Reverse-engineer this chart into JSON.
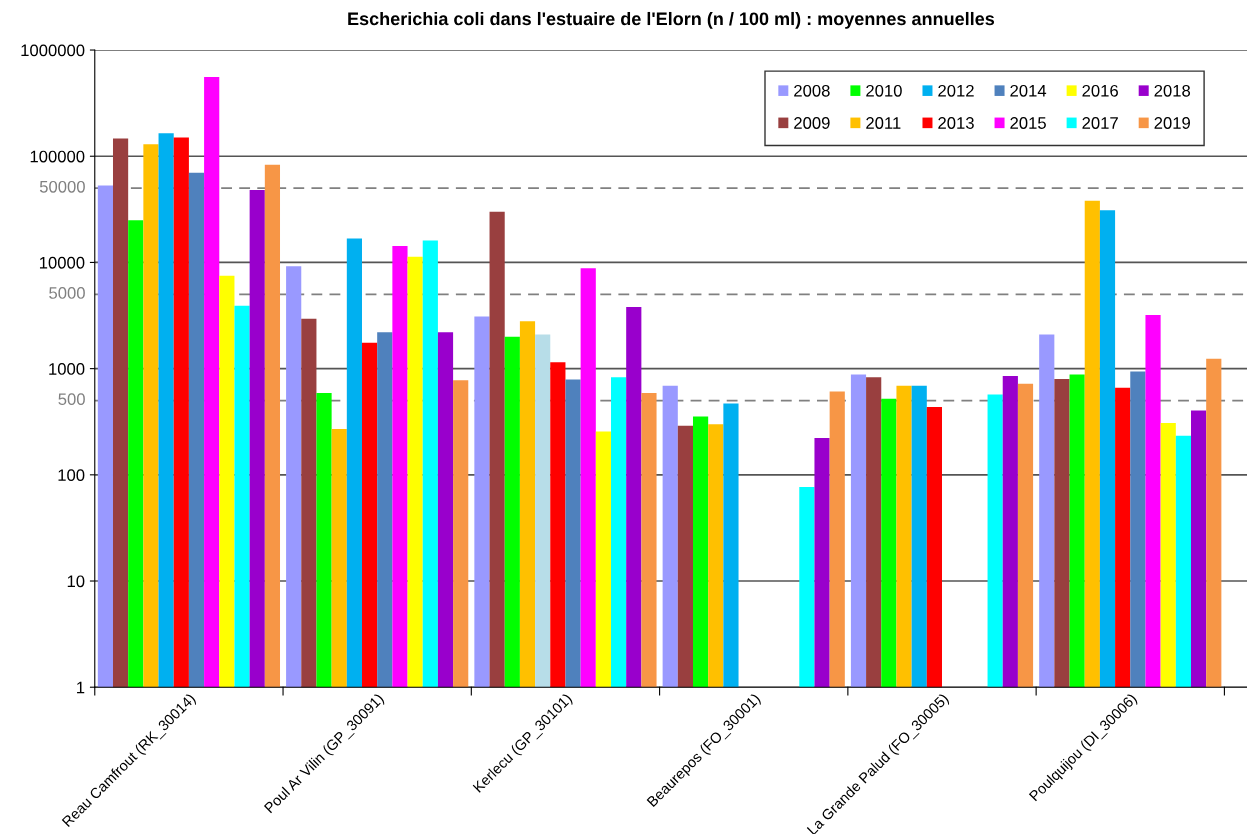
{
  "chart_data": {
    "type": "bar",
    "title": "Escherichia coli dans l'estuaire de l'Elorn (n / 100 ml) : moyennes annuelles",
    "categories": [
      "Reau Camfrout (RK_30014)",
      "Poul Ar Vilin (GP_30091)",
      "Kerlecu (GP_30101)",
      "Beaurepos (FO_30001)",
      "La Grande Palud (FO_30005)",
      "Poulquijou (DI_30006)"
    ],
    "log": true,
    "ylim": [
      1,
      1000000
    ],
    "yticks": [
      1,
      10,
      100,
      1000,
      10000,
      100000,
      1000000
    ],
    "grid": "y",
    "legend": "top right",
    "ref_lines": [
      {
        "axis": "y",
        "value": 50000,
        "label": "50000",
        "color": "#808080",
        "line_style": "dashed"
      },
      {
        "axis": "y",
        "value": 5000,
        "label": "5000",
        "color": "#808080",
        "line_style": "dashed"
      },
      {
        "axis": "y",
        "value": 500,
        "label": "500",
        "color": "#808080",
        "line_style": "dashed"
      }
    ],
    "series": [
      {
        "name": "2008",
        "color": "#9999ff",
        "values": [
          53000,
          9200,
          3100,
          690,
          880,
          2100
        ]
      },
      {
        "name": "2009",
        "color": "#993f3f",
        "values": [
          147000,
          2950,
          30000,
          290,
          830,
          800
        ]
      },
      {
        "name": "2010",
        "color": "#00ff00",
        "values": [
          25000,
          590,
          2000,
          355,
          520,
          880
        ]
      },
      {
        "name": "2011",
        "color": "#ffc000",
        "values": [
          130000,
          270,
          2800,
          300,
          690,
          38000
        ]
      },
      {
        "name": "2012",
        "color": "#00b0f0",
        "colors": [
          "#00b0f0",
          "#00b0f0",
          "#b7dde8",
          "#00b0f0",
          "#00b0f0",
          "#00b0f0"
        ],
        "values": [
          165000,
          16800,
          2100,
          470,
          690,
          31000
        ]
      },
      {
        "name": "2013",
        "color": "#ff0000",
        "values": [
          150000,
          1750,
          1150,
          null,
          435,
          660
        ]
      },
      {
        "name": "2014",
        "color": "#4f81bd",
        "values": [
          70000,
          2200,
          790,
          null,
          null,
          940
        ]
      },
      {
        "name": "2015",
        "color": "#ff00ff",
        "values": [
          556000,
          14300,
          8800,
          null,
          null,
          3200
        ]
      },
      {
        "name": "2016",
        "color": "#ffff00",
        "values": [
          7500,
          11300,
          256,
          null,
          null,
          307
        ]
      },
      {
        "name": "2017",
        "color": "#00ffff",
        "values": [
          3900,
          16100,
          830,
          77,
          570,
          233
        ]
      },
      {
        "name": "2018",
        "color": "#9900cc",
        "values": [
          48000,
          2200,
          3800,
          222,
          850,
          404
        ]
      },
      {
        "name": "2019",
        "color": "#f79646",
        "values": [
          83000,
          776,
          590,
          610,
          720,
          1240
        ]
      }
    ]
  }
}
